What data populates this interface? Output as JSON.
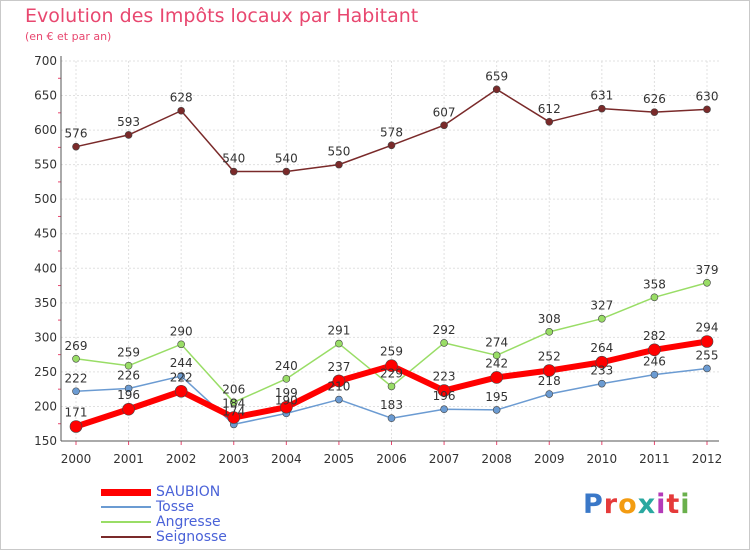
{
  "header": {
    "title": "Evolution des Impôts locaux par Habitant",
    "subtitle": "(en € et par an)"
  },
  "logo": {
    "text": "Proxiti",
    "colors": [
      "#3a78c8",
      "#e53a3a",
      "#f39c12",
      "#2aa8a0",
      "#b43ab8",
      "#e53a3a",
      "#6ab04c"
    ]
  },
  "chart_data": {
    "type": "line",
    "title": "Evolution des Impôts locaux par Habitant",
    "subtitle": "(en € et par an)",
    "xlabel": "",
    "ylabel": "",
    "x": [
      "2000",
      "2001",
      "2002",
      "2003",
      "2004",
      "2005",
      "2006",
      "2007",
      "2008",
      "2009",
      "2010",
      "2011",
      "2012"
    ],
    "ylim": [
      150,
      700
    ],
    "yticks": [
      150,
      200,
      250,
      300,
      350,
      400,
      450,
      500,
      550,
      600,
      650,
      700
    ],
    "grid": true,
    "legend_position": "bottom-left",
    "series": [
      {
        "name": "SAUBION",
        "color": "#ff0000",
        "values": [
          171,
          196,
          222,
          184,
          199,
          237,
          259,
          223,
          242,
          252,
          264,
          282,
          294
        ]
      },
      {
        "name": "Tosse",
        "color": "#6b9bd2",
        "values": [
          222,
          226,
          244,
          174,
          190,
          210,
          183,
          196,
          195,
          218,
          233,
          246,
          255
        ]
      },
      {
        "name": "Angresse",
        "color": "#99dd66",
        "values": [
          269,
          259,
          290,
          206,
          240,
          291,
          229,
          292,
          274,
          308,
          327,
          358,
          379
        ]
      },
      {
        "name": "Seignosse",
        "color": "#7a2a2a",
        "values": [
          576,
          593,
          628,
          540,
          540,
          550,
          578,
          607,
          659,
          612,
          631,
          626,
          630
        ]
      }
    ]
  }
}
